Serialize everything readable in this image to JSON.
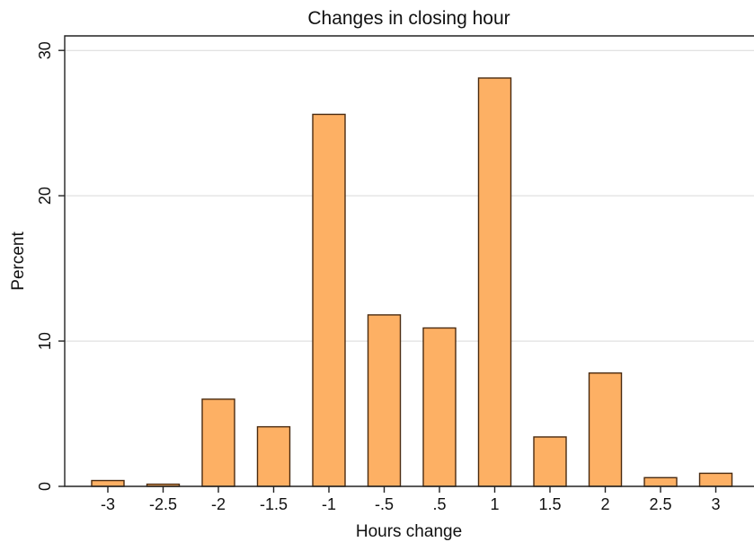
{
  "chart_data": {
    "type": "bar",
    "title": "Changes in closing hour",
    "xlabel": "Hours change",
    "ylabel": "Percent",
    "categories": [
      "-3",
      "-2.5",
      "-2",
      "-1.5",
      "-1",
      "-.5",
      ".5",
      "1",
      "1.5",
      "2",
      "2.5",
      "3"
    ],
    "values": [
      0.4,
      0.15,
      6.0,
      4.1,
      25.6,
      11.8,
      10.9,
      28.1,
      3.4,
      7.8,
      0.6,
      0.9
    ],
    "ylim": [
      0,
      31
    ],
    "yticks": [
      0,
      10,
      20,
      30
    ],
    "grid": true,
    "bar_color": "#fdb064",
    "bar_edge_color": "#4a2b10"
  }
}
